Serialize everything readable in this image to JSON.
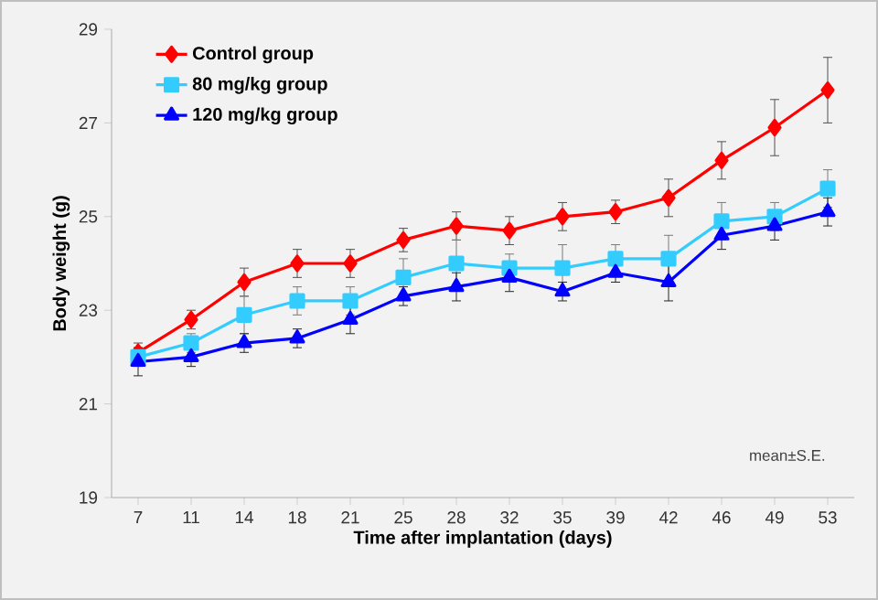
{
  "chart_data": {
    "type": "line",
    "xlabel": "Time after implantation (days)",
    "ylabel": "Body weight (g)",
    "categories": [
      "7",
      "11",
      "14",
      "18",
      "21",
      "25",
      "28",
      "32",
      "35",
      "39",
      "42",
      "46",
      "49",
      "53"
    ],
    "ylim": [
      19,
      29
    ],
    "yticks": [
      19,
      21,
      23,
      25,
      27,
      29
    ],
    "grid": false,
    "legend": "top left",
    "line_style": "solid",
    "annotations": [
      "mean±S.E."
    ],
    "series": [
      {
        "name": "Control group",
        "color": "#ff0000",
        "marker": "diamond",
        "values": [
          22.1,
          22.8,
          23.6,
          24.0,
          24.0,
          24.5,
          24.8,
          24.7,
          25.0,
          25.1,
          25.4,
          26.2,
          26.9,
          27.7
        ],
        "errors": [
          0.2,
          0.2,
          0.3,
          0.3,
          0.3,
          0.25,
          0.3,
          0.3,
          0.3,
          0.25,
          0.4,
          0.4,
          0.6,
          0.7
        ]
      },
      {
        "name": "80 mg/kg group",
        "color": "#33ccff",
        "marker": "square",
        "values": [
          22.0,
          22.3,
          22.9,
          23.2,
          23.2,
          23.7,
          24.0,
          23.9,
          23.9,
          24.1,
          24.1,
          24.9,
          25.0,
          25.6
        ],
        "errors": [
          0.2,
          0.2,
          0.4,
          0.3,
          0.3,
          0.4,
          0.5,
          0.3,
          0.5,
          0.3,
          0.5,
          0.4,
          0.3,
          0.4
        ]
      },
      {
        "name": "120 mg/kg group",
        "color": "#0000ff",
        "marker": "triangle",
        "values": [
          21.9,
          22.0,
          22.3,
          22.4,
          22.8,
          23.3,
          23.5,
          23.7,
          23.4,
          23.8,
          23.6,
          24.6,
          24.8,
          25.1
        ],
        "errors": [
          0.3,
          0.2,
          0.2,
          0.2,
          0.3,
          0.2,
          0.3,
          0.3,
          0.2,
          0.2,
          0.4,
          0.3,
          0.3,
          0.3
        ]
      }
    ]
  }
}
